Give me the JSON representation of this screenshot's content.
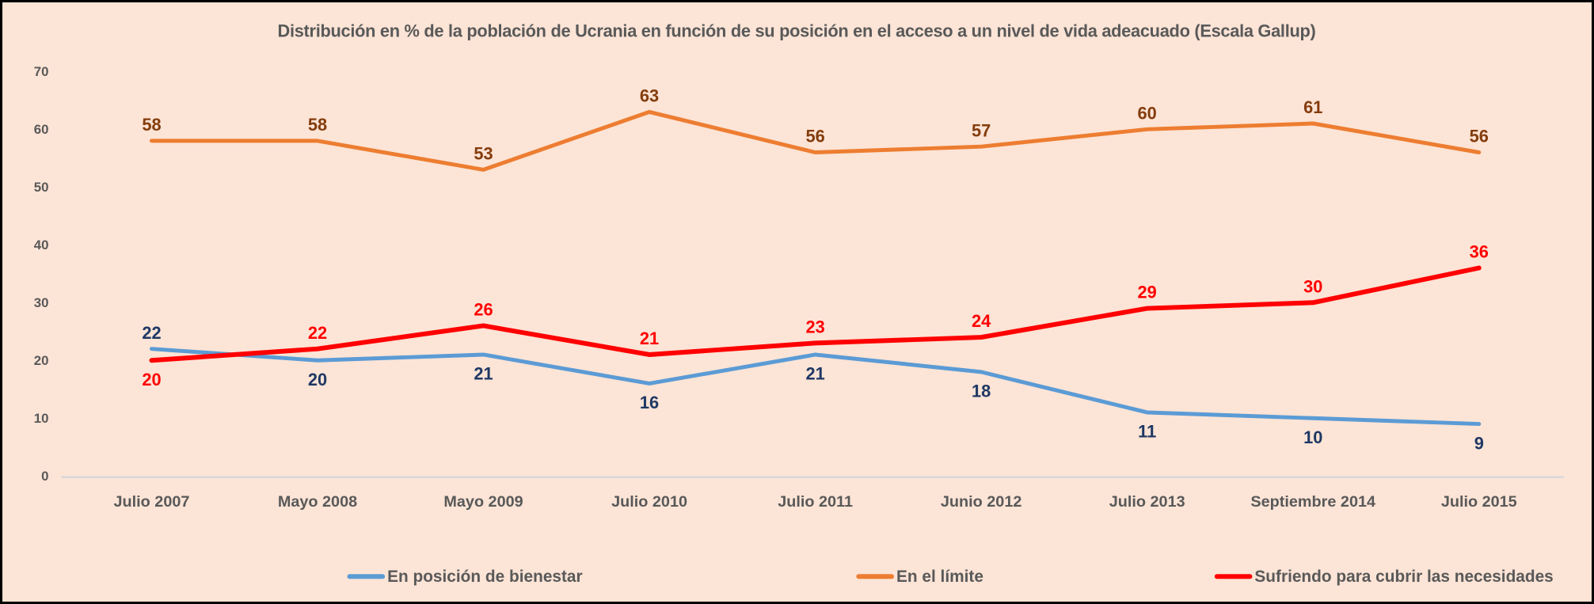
{
  "chart_data": {
    "type": "line",
    "title": "Distribución en % de la población de Ucrania en función de su posición en el acceso a un nivel de vida adeacuado (Escala Gallup)",
    "categories": [
      "Julio 2007",
      "Mayo 2008",
      "Mayo 2009",
      "Julio 2010",
      "Julio 2011",
      "Junio 2012",
      "Julio 2013",
      "Septiembre 2014",
      "Julio 2015"
    ],
    "yticks": [
      0,
      10,
      20,
      30,
      40,
      50,
      60,
      70
    ],
    "ylim": [
      0,
      70
    ],
    "grid": false,
    "legend_position": "bottom",
    "series": [
      {
        "name": "En posición de bienestar",
        "color": "#5B9BD5",
        "label_color": "#1F3864",
        "line_width": 5,
        "values": [
          22,
          20,
          21,
          16,
          21,
          18,
          11,
          10,
          9
        ],
        "label_side": [
          "above",
          "below",
          "below",
          "below",
          "below",
          "below",
          "below",
          "below",
          "below"
        ]
      },
      {
        "name": "En el límite",
        "color": "#ED7D31",
        "label_color": "#843C0C",
        "line_width": 5,
        "values": [
          58,
          58,
          53,
          63,
          56,
          57,
          60,
          61,
          56
        ],
        "label_side": [
          "above",
          "above",
          "above",
          "above",
          "above",
          "above",
          "above",
          "above",
          "above"
        ]
      },
      {
        "name": "Sufriendo para cubrir las necesidades",
        "color": "#FF0000",
        "label_color": "#FF0000",
        "line_width": 6,
        "values": [
          20,
          22,
          26,
          21,
          23,
          24,
          29,
          30,
          36
        ],
        "label_side": [
          "below",
          "above",
          "above",
          "above",
          "above",
          "above",
          "above",
          "above",
          "above"
        ]
      }
    ],
    "colors": {
      "background": "#FCE4D6",
      "border": "#000000",
      "text": "#595959",
      "axis_line": "#D9D9D9"
    }
  }
}
